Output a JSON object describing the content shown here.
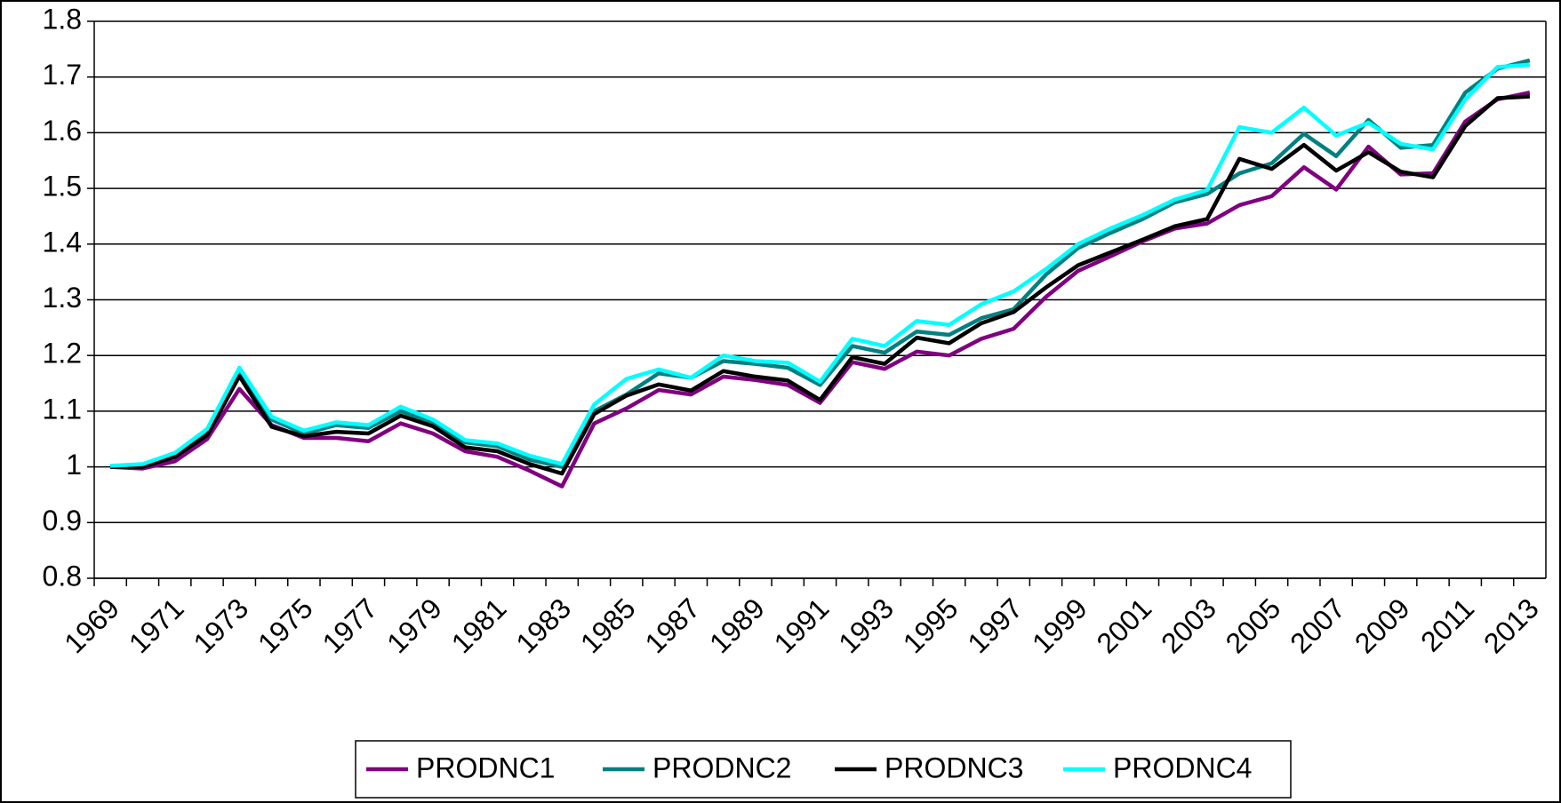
{
  "chart_data": {
    "type": "line",
    "categories": [
      "1969",
      null,
      "1971",
      null,
      "1973",
      null,
      "1975",
      null,
      "1977",
      null,
      "1979",
      null,
      "1981",
      null,
      "1983",
      null,
      "1985",
      null,
      "1987",
      null,
      "1989",
      null,
      "1991",
      null,
      "1993",
      null,
      "1995",
      null,
      "1997",
      null,
      "1999",
      null,
      "2001",
      null,
      "2003",
      null,
      "2005",
      null,
      "2007",
      null,
      "2009",
      null,
      "2011",
      null,
      "2013"
    ],
    "series": [
      {
        "name": "PRODNC1",
        "color": "#800080",
        "values": [
          1.0,
          0.997,
          1.01,
          1.05,
          1.14,
          1.075,
          1.052,
          1.052,
          1.046,
          1.078,
          1.06,
          1.028,
          1.018,
          0.993,
          0.965,
          1.078,
          1.105,
          1.138,
          1.13,
          1.162,
          1.156,
          1.147,
          1.115,
          1.188,
          1.176,
          1.207,
          1.2,
          1.23,
          1.248,
          1.305,
          1.352,
          1.378,
          1.405,
          1.428,
          1.437,
          1.47,
          1.486,
          1.538,
          1.498,
          1.575,
          1.525,
          1.527,
          1.62,
          1.66,
          1.672
        ]
      },
      {
        "name": "PRODNC2",
        "color": "#008080",
        "values": [
          1.0,
          1.003,
          1.02,
          1.063,
          1.17,
          1.085,
          1.06,
          1.075,
          1.07,
          1.1,
          1.08,
          1.044,
          1.037,
          1.013,
          1.0,
          1.1,
          1.13,
          1.168,
          1.16,
          1.19,
          1.185,
          1.178,
          1.147,
          1.217,
          1.205,
          1.243,
          1.237,
          1.267,
          1.283,
          1.345,
          1.393,
          1.42,
          1.445,
          1.475,
          1.49,
          1.527,
          1.545,
          1.598,
          1.558,
          1.623,
          1.573,
          1.578,
          1.672,
          1.715,
          1.73
        ]
      },
      {
        "name": "PRODNC3",
        "color": "#000000",
        "values": [
          1.0,
          1.0,
          1.018,
          1.057,
          1.163,
          1.072,
          1.055,
          1.063,
          1.06,
          1.092,
          1.073,
          1.035,
          1.028,
          1.005,
          0.988,
          1.095,
          1.128,
          1.148,
          1.137,
          1.172,
          1.162,
          1.155,
          1.12,
          1.197,
          1.185,
          1.232,
          1.222,
          1.258,
          1.278,
          1.322,
          1.362,
          1.385,
          1.408,
          1.432,
          1.445,
          1.553,
          1.535,
          1.578,
          1.532,
          1.565,
          1.53,
          1.52,
          1.612,
          1.662,
          1.665
        ]
      },
      {
        "name": "PRODNC4",
        "color": "#00ffff",
        "values": [
          1.002,
          1.005,
          1.025,
          1.068,
          1.178,
          1.09,
          1.065,
          1.08,
          1.075,
          1.108,
          1.085,
          1.048,
          1.042,
          1.02,
          1.005,
          1.112,
          1.158,
          1.175,
          1.16,
          1.2,
          1.19,
          1.187,
          1.153,
          1.23,
          1.217,
          1.262,
          1.255,
          1.292,
          1.315,
          1.355,
          1.4,
          1.428,
          1.452,
          1.48,
          1.497,
          1.61,
          1.6,
          1.645,
          1.595,
          1.618,
          1.58,
          1.57,
          1.66,
          1.718,
          1.722
        ]
      }
    ],
    "ylim": [
      0.8,
      1.8
    ],
    "yticks": [
      0.8,
      0.9,
      1,
      1.1,
      1.2,
      1.3,
      1.4,
      1.5,
      1.6,
      1.7,
      1.8
    ],
    "grid": true,
    "legend": "bottom"
  }
}
